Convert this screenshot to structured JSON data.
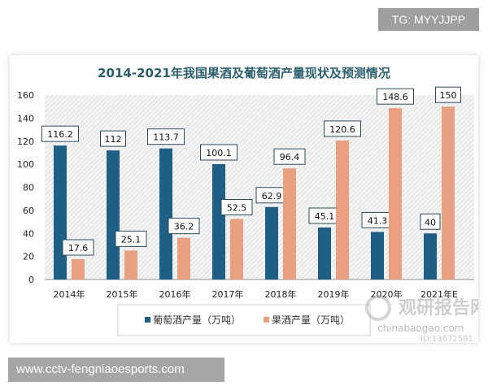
{
  "overlay": {
    "tg_label": "TG: MYYJJPP",
    "site_label": "www.cctv-fengniaoesports.com"
  },
  "watermark": {
    "brand": "观研报告网",
    "domain": "chinabaogao.com",
    "id": "ID:13672581"
  },
  "chart_data": {
    "type": "bar",
    "title": "2014-2021年我国果酒及葡萄酒产量现状及预测情况",
    "categories": [
      "2014年",
      "2015年",
      "2016年",
      "2017年",
      "2018年",
      "2019年",
      "2020年",
      "2021年E"
    ],
    "series": [
      {
        "name": "葡萄酒产量（万吨）",
        "values": [
          116.2,
          112,
          113.7,
          100.1,
          62.9,
          45.1,
          41.3,
          40
        ],
        "color": "#1f5f85"
      },
      {
        "name": "果酒产量（万吨）",
        "values": [
          17.6,
          25.1,
          36.2,
          52.5,
          96.4,
          120.6,
          148.6,
          150
        ],
        "color": "#e8a080"
      }
    ],
    "ylim": [
      0,
      160
    ],
    "yticks": [
      "0",
      "20",
      "40",
      "60",
      "80",
      "100",
      "120",
      "140",
      "160"
    ],
    "data_labels": true,
    "legend": "bottom",
    "grid": false
  }
}
